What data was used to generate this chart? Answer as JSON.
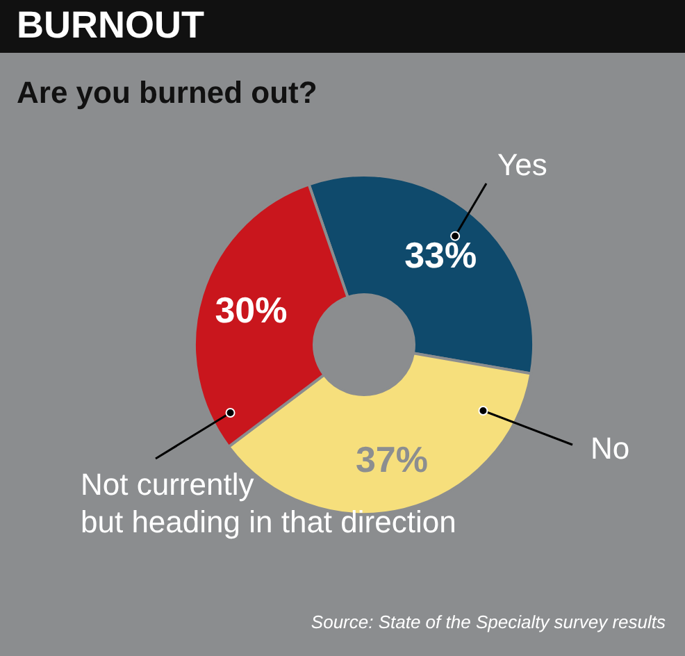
{
  "chart_data": {
    "type": "donut",
    "title": "BURNOUT",
    "subtitle": "Are you burned out?",
    "categories": [
      "Yes",
      "No",
      "Not currently\nbut heading in that direction"
    ],
    "values": [
      33,
      37,
      30
    ],
    "value_labels": [
      "33%",
      "37%",
      "30%"
    ],
    "colors": [
      "#0f4a6c",
      "#f6df7c",
      "#c9161d"
    ],
    "annotations": [
      "Source: State of the Specialty survey results"
    ]
  }
}
